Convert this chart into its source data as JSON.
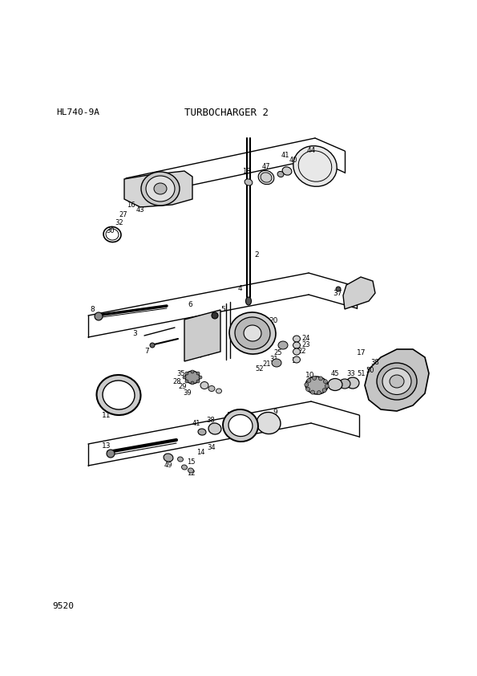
{
  "title": "TURBOCHARGER 2",
  "model": "HL740-9A",
  "part_number": "9520",
  "bg_color": "#ffffff",
  "line_color": "#000000",
  "fig_width": 5.95,
  "fig_height": 8.42,
  "dpi": 100
}
